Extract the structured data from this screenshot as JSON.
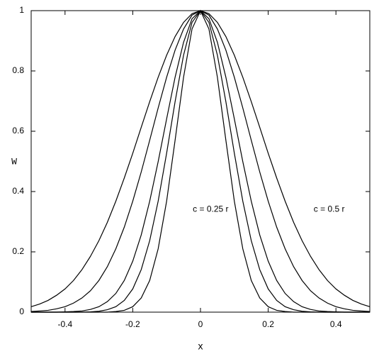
{
  "chart_data": {
    "type": "line",
    "x_label": "x",
    "y_label": "W",
    "x": [
      -0.5,
      -0.475,
      -0.45,
      -0.425,
      -0.4,
      -0.375,
      -0.35,
      -0.325,
      -0.3,
      -0.275,
      -0.25,
      -0.225,
      -0.2,
      -0.175,
      -0.15,
      -0.125,
      -0.1,
      -0.075,
      -0.05,
      -0.025,
      0,
      0.025,
      0.05,
      0.075,
      0.1,
      0.125,
      0.15,
      0.175,
      0.2,
      0.225,
      0.25,
      0.275,
      0.3,
      0.325,
      0.35,
      0.375,
      0.4,
      0.425,
      0.45,
      0.475,
      0.5
    ],
    "series": [
      {
        "color": "#000000",
        "values": [
          0,
          0,
          0,
          0,
          0,
          0,
          0,
          0,
          0,
          0,
          0.002,
          0.006,
          0.018,
          0.047,
          0.105,
          0.21,
          0.368,
          0.57,
          0.779,
          0.939,
          1,
          0.939,
          0.779,
          0.57,
          0.368,
          0.21,
          0.105,
          0.047,
          0.018,
          0.006,
          0.002,
          0,
          0,
          0,
          0,
          0,
          0,
          0,
          0,
          0,
          0
        ]
      },
      {
        "color": "#000000",
        "values": [
          0,
          0,
          0,
          0,
          0,
          0,
          0,
          0.001,
          0.003,
          0.008,
          0.018,
          0.039,
          0.077,
          0.141,
          0.237,
          0.368,
          0.527,
          0.698,
          0.852,
          0.961,
          1,
          0.961,
          0.852,
          0.698,
          0.527,
          0.368,
          0.237,
          0.141,
          0.077,
          0.039,
          0.018,
          0.008,
          0.003,
          0.001,
          0,
          0,
          0,
          0,
          0,
          0,
          0
        ]
      },
      {
        "color": "#000000",
        "values": [
          0,
          0,
          0,
          0,
          0.001,
          0.002,
          0.004,
          0.009,
          0.018,
          0.035,
          0.062,
          0.105,
          0.169,
          0.256,
          0.368,
          0.499,
          0.641,
          0.779,
          0.895,
          0.973,
          1,
          0.973,
          0.895,
          0.779,
          0.641,
          0.499,
          0.368,
          0.256,
          0.169,
          0.105,
          0.062,
          0.035,
          0.018,
          0.009,
          0.004,
          0.002,
          0.001,
          0,
          0,
          0,
          0
        ]
      },
      {
        "color": "#000000",
        "values": [
          0.002,
          0.004,
          0.006,
          0.011,
          0.018,
          0.03,
          0.047,
          0.071,
          0.105,
          0.151,
          0.21,
          0.282,
          0.368,
          0.465,
          0.57,
          0.677,
          0.779,
          0.869,
          0.939,
          0.985,
          1,
          0.985,
          0.939,
          0.869,
          0.779,
          0.677,
          0.57,
          0.465,
          0.368,
          0.282,
          0.21,
          0.151,
          0.105,
          0.071,
          0.047,
          0.03,
          0.018,
          0.011,
          0.006,
          0.004,
          0.002
        ]
      },
      {
        "color": "#000000",
        "values": [
          0.018,
          0.027,
          0.039,
          0.056,
          0.077,
          0.105,
          0.141,
          0.185,
          0.237,
          0.298,
          0.368,
          0.445,
          0.527,
          0.613,
          0.698,
          0.779,
          0.852,
          0.914,
          0.961,
          0.99,
          1,
          0.99,
          0.961,
          0.914,
          0.852,
          0.779,
          0.698,
          0.613,
          0.527,
          0.445,
          0.368,
          0.298,
          0.237,
          0.185,
          0.141,
          0.105,
          0.077,
          0.056,
          0.039,
          0.027,
          0.018
        ]
      }
    ],
    "annotations": [
      {
        "text": "c = 0.25 r",
        "x": 0.03,
        "y": 0.34
      },
      {
        "text": "c = 0.5 r",
        "x": 0.38,
        "y": 0.34
      }
    ],
    "xlim": [
      -0.5,
      0.5
    ],
    "xticks": [
      -0.4,
      -0.2,
      0,
      0.2,
      0.4
    ],
    "ylim": [
      0,
      1
    ],
    "yticks": [
      0,
      0.2,
      0.4,
      0.6,
      0.8,
      1
    ],
    "grid": false
  }
}
